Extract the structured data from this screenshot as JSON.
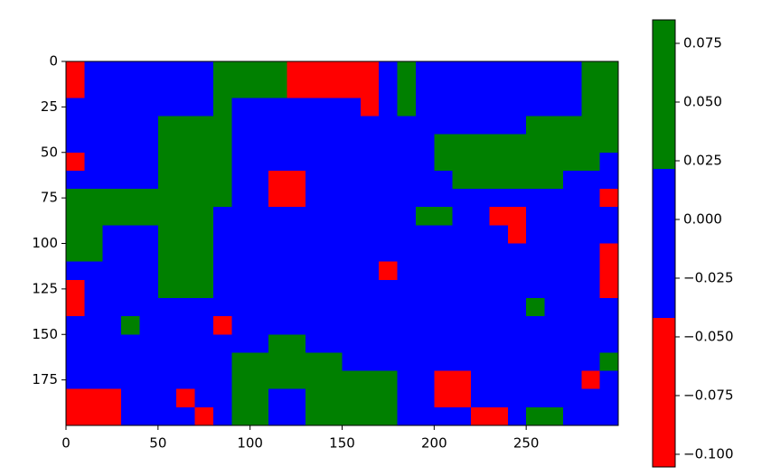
{
  "chart_data": {
    "type": "heatmap",
    "z": [
      [
        -0.07,
        0,
        0,
        0,
        0,
        0,
        0,
        0,
        0.05,
        0.05,
        0.05,
        0.05,
        -0.07,
        -0.07,
        -0.07,
        -0.07,
        -0.07,
        0,
        0.05,
        0,
        0,
        0,
        0,
        0,
        0,
        0,
        0,
        0,
        0.05,
        0.05
      ],
      [
        -0.07,
        0,
        0,
        0,
        0,
        0,
        0,
        0,
        0.05,
        0.05,
        0.05,
        0.05,
        -0.07,
        -0.07,
        -0.07,
        -0.07,
        -0.07,
        0,
        0.05,
        0,
        0,
        0,
        0,
        0,
        0,
        0,
        0,
        0,
        0.05,
        0.05
      ],
      [
        0,
        0,
        0,
        0,
        0,
        0,
        0,
        0,
        0.05,
        0,
        0,
        0,
        0,
        0,
        0,
        0,
        -0.07,
        0,
        0.05,
        0,
        0,
        0,
        0,
        0,
        0,
        0,
        0,
        0,
        0.05,
        0.05
      ],
      [
        0,
        0,
        0,
        0,
        0,
        0.05,
        0.05,
        0.05,
        0.05,
        0,
        0,
        0,
        0,
        0,
        0,
        0,
        0,
        0,
        0,
        0,
        0,
        0,
        0,
        0,
        0,
        0.05,
        0.05,
        0.05,
        0.05,
        0.05
      ],
      [
        0,
        0,
        0,
        0,
        0,
        0.05,
        0.05,
        0.05,
        0.05,
        0,
        0,
        0,
        0,
        0,
        0,
        0,
        0,
        0,
        0,
        0,
        0.05,
        0.05,
        0.05,
        0.05,
        0.05,
        0.05,
        0.05,
        0.05,
        0.05,
        0.05
      ],
      [
        -0.07,
        0,
        0,
        0,
        0,
        0.05,
        0.05,
        0.05,
        0.05,
        0,
        0,
        0,
        0,
        0,
        0,
        0,
        0,
        0,
        0,
        0,
        0.05,
        0.05,
        0.05,
        0.05,
        0.05,
        0.05,
        0.05,
        0.05,
        0.05,
        0
      ],
      [
        0,
        0,
        0,
        0,
        0,
        0.05,
        0.05,
        0.05,
        0.05,
        0,
        0,
        -0.07,
        -0.07,
        0,
        0,
        0,
        0,
        0,
        0,
        0,
        0,
        0.05,
        0.05,
        0.05,
        0.05,
        0.05,
        0.05,
        0,
        0,
        0
      ],
      [
        0.05,
        0.05,
        0.05,
        0.05,
        0.05,
        0.05,
        0.05,
        0.05,
        0.05,
        0,
        0,
        -0.07,
        -0.07,
        0,
        0,
        0,
        0,
        0,
        0,
        0,
        0,
        0,
        0,
        0,
        0,
        0,
        0,
        0,
        0,
        -0.07
      ],
      [
        0.05,
        0.05,
        0.05,
        0.05,
        0.05,
        0.05,
        0.05,
        0.05,
        0,
        0,
        0,
        0,
        0,
        0,
        0,
        0,
        0,
        0,
        0,
        0.05,
        0.05,
        0,
        0,
        -0.07,
        -0.07,
        0,
        0,
        0,
        0,
        0
      ],
      [
        0.05,
        0.05,
        0,
        0,
        0,
        0.05,
        0.05,
        0.05,
        0,
        0,
        0,
        0,
        0,
        0,
        0,
        0,
        0,
        0,
        0,
        0,
        0,
        0,
        0,
        0,
        -0.07,
        0,
        0,
        0,
        0,
        0
      ],
      [
        0.05,
        0.05,
        0,
        0,
        0,
        0.05,
        0.05,
        0.05,
        0,
        0,
        0,
        0,
        0,
        0,
        0,
        0,
        0,
        0,
        0,
        0,
        0,
        0,
        0,
        0,
        0,
        0,
        0,
        0,
        0,
        -0.07
      ],
      [
        0,
        0,
        0,
        0,
        0,
        0.05,
        0.05,
        0.05,
        0,
        0,
        0,
        0,
        0,
        0,
        0,
        0,
        0,
        -0.07,
        0,
        0,
        0,
        0,
        0,
        0,
        0,
        0,
        0,
        0,
        0,
        -0.07
      ],
      [
        -0.07,
        0,
        0,
        0,
        0,
        0.05,
        0.05,
        0.05,
        0,
        0,
        0,
        0,
        0,
        0,
        0,
        0,
        0,
        0,
        0,
        0,
        0,
        0,
        0,
        0,
        0,
        0,
        0,
        0,
        0,
        -0.07
      ],
      [
        -0.07,
        0,
        0,
        0,
        0,
        0,
        0,
        0,
        0,
        0,
        0,
        0,
        0,
        0,
        0,
        0,
        0,
        0,
        0,
        0,
        0,
        0,
        0,
        0,
        0,
        0.05,
        0,
        0,
        0,
        0
      ],
      [
        0,
        0,
        0,
        0.05,
        0,
        0,
        0,
        0,
        -0.07,
        0,
        0,
        0,
        0,
        0,
        0,
        0,
        0,
        0,
        0,
        0,
        0,
        0,
        0,
        0,
        0,
        0,
        0,
        0,
        0,
        0
      ],
      [
        0,
        0,
        0,
        0,
        0,
        0,
        0,
        0,
        0,
        0,
        0,
        0.05,
        0.05,
        0,
        0,
        0,
        0,
        0,
        0,
        0,
        0,
        0,
        0,
        0,
        0,
        0,
        0,
        0,
        0,
        0
      ],
      [
        0,
        0,
        0,
        0,
        0,
        0,
        0,
        0,
        0,
        0.05,
        0.05,
        0.05,
        0.05,
        0.05,
        0.05,
        0,
        0,
        0,
        0,
        0,
        0,
        0,
        0,
        0,
        0,
        0,
        0,
        0,
        0,
        0.05
      ],
      [
        0,
        0,
        0,
        0,
        0,
        0,
        0,
        0,
        0,
        0.05,
        0.05,
        0.05,
        0.05,
        0.05,
        0.05,
        0.05,
        0.05,
        0.05,
        0,
        0,
        -0.07,
        -0.07,
        0,
        0,
        0,
        0,
        0,
        0,
        -0.07,
        0
      ],
      [
        -0.07,
        -0.07,
        -0.07,
        0,
        0,
        0,
        -0.07,
        0,
        0,
        0.05,
        0.05,
        0,
        0,
        0.05,
        0.05,
        0.05,
        0.05,
        0.05,
        0,
        0,
        -0.07,
        -0.07,
        0,
        0,
        0,
        0,
        0,
        0,
        0,
        0
      ],
      [
        -0.07,
        -0.07,
        -0.07,
        0,
        0,
        0,
        0,
        -0.07,
        0,
        0.05,
        0.05,
        0,
        0,
        0.05,
        0.05,
        0.05,
        0.05,
        0.05,
        0,
        0,
        0,
        0,
        -0.07,
        -0.07,
        0,
        0.05,
        0.05,
        0,
        0,
        0
      ]
    ],
    "xlim": [
      0,
      300
    ],
    "ylim": [
      200,
      0
    ],
    "xticks": [
      0,
      50,
      100,
      150,
      200,
      250
    ],
    "yticks": [
      0,
      25,
      50,
      75,
      100,
      125,
      150,
      175
    ],
    "levels": [
      -0.1054,
      -0.042,
      0.0215,
      0.085
    ],
    "colors": [
      "#ff0000",
      "#0000ff",
      "#008000"
    ],
    "cticks": [
      0.075,
      {
        "value": 0.05,
        "label": "0.050"
      },
      0.025,
      {
        "value": 0,
        "label": "0.000"
      },
      {
        "value": -0.025,
        "label": "−0.025"
      },
      {
        "value": -0.05,
        "label": "−0.050"
      },
      {
        "value": -0.075,
        "label": "−0.075"
      },
      {
        "value": -0.1,
        "label": "−0.100"
      }
    ]
  }
}
